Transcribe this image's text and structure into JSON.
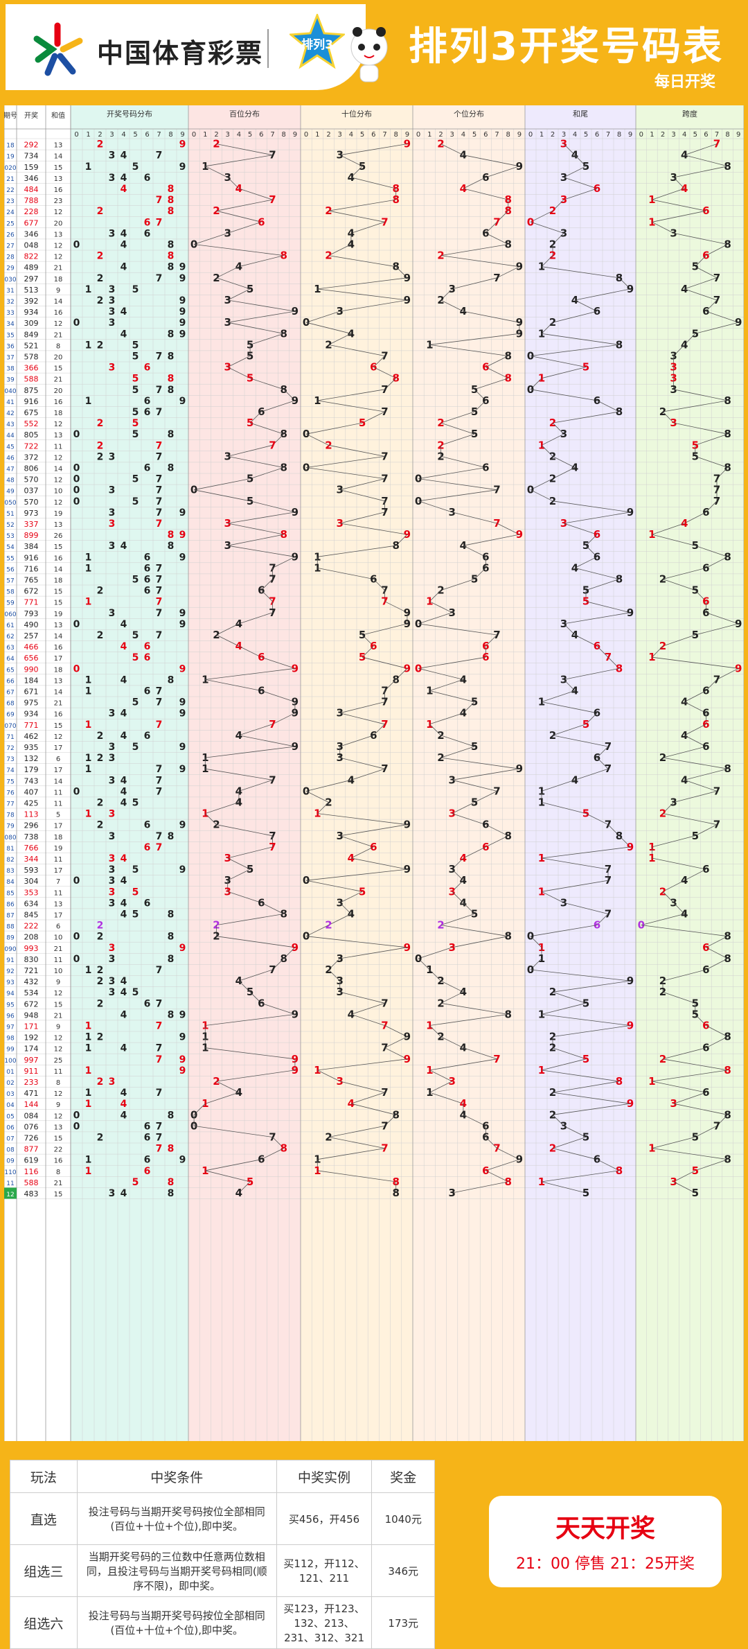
{
  "header": {
    "brand": "中国体育彩票",
    "badge": "排列3",
    "title": "排列3开奖号码表",
    "subtitle": "每日开奖"
  },
  "chart": {
    "columns": [
      "期号",
      "开奖",
      "和值"
    ],
    "groups": [
      "开奖号码分布",
      "百位分布",
      "十位分布",
      "个位分布",
      "和尾",
      "跨度"
    ],
    "group_colors": [
      "#dff7f0",
      "#fde5e3",
      "#fff2dd",
      "#fff0e4",
      "#eeeafd",
      "#ecf9dd"
    ],
    "draws": [
      [
        "18",
        "292",
        "13"
      ],
      [
        "19",
        "734",
        "14"
      ],
      [
        "020",
        "159",
        "15"
      ],
      [
        "21",
        "346",
        "13"
      ],
      [
        "22",
        "484",
        "16"
      ],
      [
        "23",
        "788",
        "23"
      ],
      [
        "24",
        "228",
        "12"
      ],
      [
        "25",
        "677",
        "20"
      ],
      [
        "26",
        "346",
        "13"
      ],
      [
        "27",
        "048",
        "12"
      ],
      [
        "28",
        "822",
        "12"
      ],
      [
        "29",
        "489",
        "21"
      ],
      [
        "030",
        "297",
        "18"
      ],
      [
        "31",
        "513",
        "9"
      ],
      [
        "32",
        "392",
        "14"
      ],
      [
        "33",
        "934",
        "16"
      ],
      [
        "34",
        "309",
        "12"
      ],
      [
        "35",
        "849",
        "21"
      ],
      [
        "36",
        "521",
        "8"
      ],
      [
        "37",
        "578",
        "20"
      ],
      [
        "38",
        "366",
        "15"
      ],
      [
        "39",
        "588",
        "21"
      ],
      [
        "040",
        "875",
        "20"
      ],
      [
        "41",
        "916",
        "16"
      ],
      [
        "42",
        "675",
        "18"
      ],
      [
        "43",
        "552",
        "12"
      ],
      [
        "44",
        "805",
        "13"
      ],
      [
        "45",
        "722",
        "11"
      ],
      [
        "46",
        "372",
        "12"
      ],
      [
        "47",
        "806",
        "14"
      ],
      [
        "48",
        "570",
        "12"
      ],
      [
        "49",
        "037",
        "10"
      ],
      [
        "050",
        "570",
        "12"
      ],
      [
        "51",
        "973",
        "19"
      ],
      [
        "52",
        "337",
        "13"
      ],
      [
        "53",
        "899",
        "26"
      ],
      [
        "54",
        "384",
        "15"
      ],
      [
        "55",
        "916",
        "16"
      ],
      [
        "56",
        "716",
        "14"
      ],
      [
        "57",
        "765",
        "18"
      ],
      [
        "58",
        "672",
        "15"
      ],
      [
        "59",
        "771",
        "15"
      ],
      [
        "060",
        "793",
        "19"
      ],
      [
        "61",
        "490",
        "13"
      ],
      [
        "62",
        "257",
        "14"
      ],
      [
        "63",
        "466",
        "16"
      ],
      [
        "64",
        "656",
        "17"
      ],
      [
        "65",
        "990",
        "18"
      ],
      [
        "66",
        "184",
        "13"
      ],
      [
        "67",
        "671",
        "14"
      ],
      [
        "68",
        "975",
        "21"
      ],
      [
        "69",
        "934",
        "16"
      ],
      [
        "070",
        "771",
        "15"
      ],
      [
        "71",
        "462",
        "12"
      ],
      [
        "72",
        "935",
        "17"
      ],
      [
        "73",
        "132",
        "6"
      ],
      [
        "74",
        "179",
        "17"
      ],
      [
        "75",
        "743",
        "14"
      ],
      [
        "76",
        "407",
        "11"
      ],
      [
        "77",
        "425",
        "11"
      ],
      [
        "78",
        "113",
        "5"
      ],
      [
        "79",
        "296",
        "17"
      ],
      [
        "080",
        "738",
        "18"
      ],
      [
        "81",
        "766",
        "19"
      ],
      [
        "82",
        "344",
        "11"
      ],
      [
        "83",
        "593",
        "17"
      ],
      [
        "84",
        "304",
        "7"
      ],
      [
        "85",
        "353",
        "11"
      ],
      [
        "86",
        "634",
        "13"
      ],
      [
        "87",
        "845",
        "17"
      ],
      [
        "88",
        "222",
        "6"
      ],
      [
        "89",
        "208",
        "10"
      ],
      [
        "090",
        "993",
        "21"
      ],
      [
        "91",
        "830",
        "11"
      ],
      [
        "92",
        "721",
        "10"
      ],
      [
        "93",
        "432",
        "9"
      ],
      [
        "94",
        "534",
        "12"
      ],
      [
        "95",
        "672",
        "15"
      ],
      [
        "96",
        "948",
        "21"
      ],
      [
        "97",
        "171",
        "9"
      ],
      [
        "98",
        "192",
        "12"
      ],
      [
        "99",
        "174",
        "12"
      ],
      [
        "100",
        "997",
        "25"
      ],
      [
        "01",
        "911",
        "11"
      ],
      [
        "02",
        "233",
        "8"
      ],
      [
        "03",
        "471",
        "12"
      ],
      [
        "04",
        "144",
        "9"
      ],
      [
        "05",
        "084",
        "12"
      ],
      [
        "06",
        "076",
        "13"
      ],
      [
        "07",
        "726",
        "15"
      ],
      [
        "08",
        "877",
        "22"
      ],
      [
        "09",
        "619",
        "16"
      ],
      [
        "110",
        "116",
        "8"
      ],
      [
        "11",
        "588",
        "21"
      ],
      [
        "12",
        "483",
        "15"
      ]
    ]
  },
  "footer": {
    "table": {
      "headers": [
        "玩法",
        "中奖条件",
        "中奖实例",
        "奖金"
      ],
      "rows": [
        [
          "直选",
          "投注号码与当期开奖号码按位全部相同(百位+十位+个位),即中奖。",
          "买456，开456",
          "1040元"
        ],
        [
          "组选三",
          "当期开奖号码的三位数中任意两位数相同，且投注号码与当期开奖号码相同(顺序不限)，即中奖。",
          "买112，开112、121、211",
          "346元"
        ],
        [
          "组选六",
          "投注号码与当期开奖号码按位全部相同(百位+十位+个位),即中奖。",
          "买123，开123、132、213、231、312、321",
          "173元"
        ]
      ]
    },
    "daily": {
      "title": "天天开奖",
      "time": "21：00 停售 21：25开奖"
    }
  }
}
